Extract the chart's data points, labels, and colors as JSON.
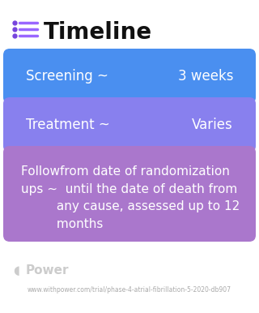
{
  "title": "Timeline",
  "title_fontsize": 20,
  "title_color": "#111111",
  "background_color": "#ffffff",
  "icon_lines_color": "#9966ff",
  "icon_dots_color": "#7744dd",
  "cards": [
    {
      "label_left": "Screening ~",
      "label_right": "3 weeks",
      "color": "#4488ee",
      "text_color": "#ffffff",
      "fontsize": 12,
      "multiline": false
    },
    {
      "label_left": "Treatment ~",
      "label_right": "Varies",
      "color": "#8877ee",
      "text_color": "#ffffff",
      "fontsize": 12,
      "multiline": false
    },
    {
      "label_left": "Followfrom date of randomization\nups ~  until the date of death from\n         any cause, assessed up to 12\n         months",
      "label_right": "",
      "color": "#aa77cc",
      "text_color": "#ffffff",
      "fontsize": 11,
      "multiline": true
    }
  ],
  "footer_logo_text": "Power",
  "footer_url": "www.withpower.com/trial/phase-4-atrial-fibrillation-5-2020-db907",
  "footer_color": "#aaaaaa",
  "footer_fontsize": 5.5
}
